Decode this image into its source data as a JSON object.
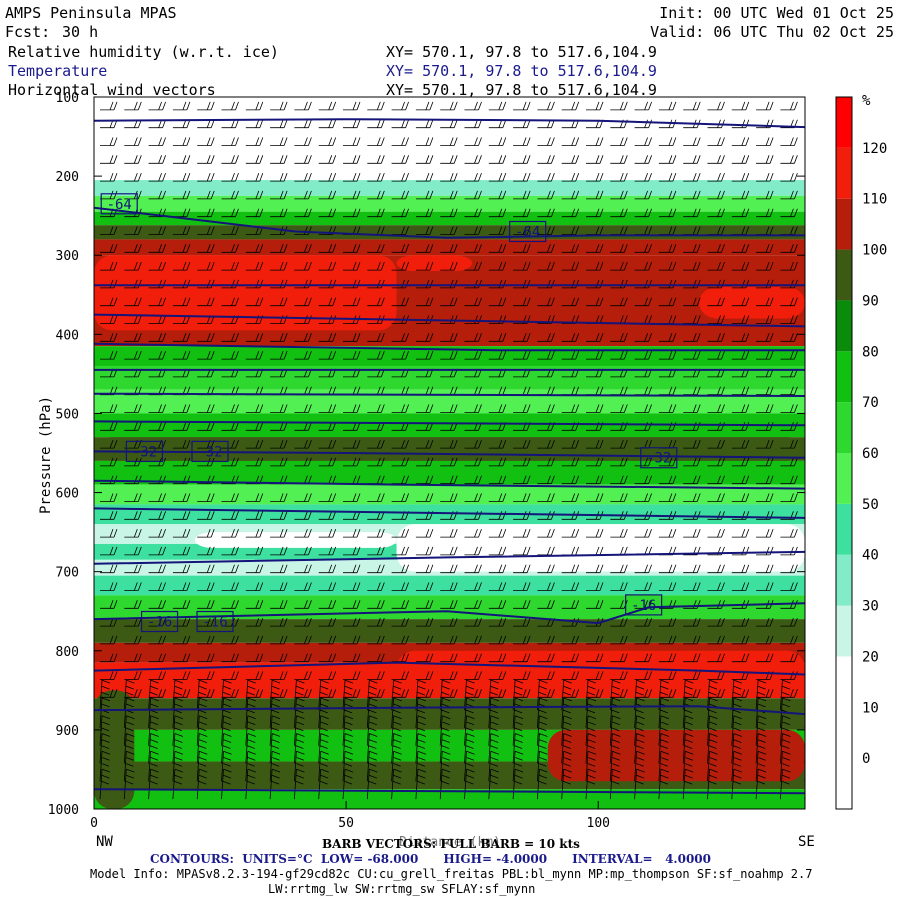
{
  "header": {
    "model_name": "AMPS Peninsula MPAS",
    "forecast_label": "Fcst:",
    "forecast_hours": "30 h",
    "init_label": "Init: 00 UTC Wed 01 Oct 25",
    "valid_label": "Valid: 06 UTC Thu 02 Oct 25",
    "fields": [
      {
        "name": "Relative humidity (w.r.t. ice)",
        "xy": "XY= 570.1, 97.8 to 517.6,104.9"
      },
      {
        "name": "Temperature",
        "xy": "XY= 570.1, 97.8 to 517.6,104.9",
        "color": "#1a1a8c"
      },
      {
        "name": "Horizontal wind vectors",
        "xy": "XY= 570.1, 97.8 to 517.6,104.9"
      }
    ]
  },
  "footer": {
    "barb_note": "BARB VECTORS: FULL BARB = 10 kts",
    "contours": "CONTOURS:  UNITS=°C  LOW= -68.000      HIGH= -4.0000      INTERVAL=   4.0000",
    "model_info": "Model Info: MPASv8.2.3-194-gf29cd82c CU:cu_grell_freitas PBL:bl_mynn MP:mp_thompson SF:sf_noahmp 2.7",
    "model_info2": "LW:rrtmg_lw SW:rrtmg_sw SFLAY:sf_mynn"
  },
  "chart_data": {
    "type": "heatmap",
    "ylabel": "Pressure (hPa)",
    "xlabel": "Distance (km)",
    "x_left_label": "NW",
    "x_right_label": "SE",
    "xlim": [
      0,
      141
    ],
    "ylim": [
      1000,
      100
    ],
    "x_ticks": [
      0,
      50,
      100
    ],
    "y_ticks": [
      100,
      200,
      300,
      400,
      500,
      600,
      700,
      800,
      900,
      1000
    ],
    "colorbar": {
      "unit": "%",
      "levels": [
        0,
        10,
        20,
        30,
        40,
        50,
        60,
        70,
        80,
        90,
        100,
        110,
        120
      ],
      "colors": [
        "#ffffff",
        "#ffffff",
        "#ffffff",
        "#c8f5e6",
        "#82ecc8",
        "#3ee0a0",
        "#52f052",
        "#2ed82e",
        "#12c012",
        "#0a8c0a",
        "#3c5a14",
        "#b41e0a",
        "#f01e0a",
        "#ff0000"
      ]
    },
    "rh_bands": [
      {
        "p_top": 100,
        "p_bot": 205,
        "rh": 0
      },
      {
        "p_top": 205,
        "p_bot": 225,
        "rh": 30
      },
      {
        "p_top": 225,
        "p_bot": 245,
        "rh": 50
      },
      {
        "p_top": 245,
        "p_bot": 262,
        "rh": 75
      },
      {
        "p_top": 262,
        "p_bot": 280,
        "rh": 95
      },
      {
        "p_top": 280,
        "p_bot": 300,
        "rh": 105
      },
      {
        "p_top": 300,
        "p_bot": 415,
        "rh": 105
      },
      {
        "p_top": 415,
        "p_bot": 440,
        "rh": 75
      },
      {
        "p_top": 440,
        "p_bot": 470,
        "rh": 65
      },
      {
        "p_top": 470,
        "p_bot": 500,
        "rh": 55
      },
      {
        "p_top": 500,
        "p_bot": 530,
        "rh": 75
      },
      {
        "p_top": 530,
        "p_bot": 560,
        "rh": 95
      },
      {
        "p_top": 560,
        "p_bot": 590,
        "rh": 75
      },
      {
        "p_top": 590,
        "p_bot": 615,
        "rh": 55
      },
      {
        "p_top": 615,
        "p_bot": 640,
        "rh": 40
      },
      {
        "p_top": 640,
        "p_bot": 665,
        "rh": 20
      },
      {
        "p_top": 665,
        "p_bot": 685,
        "rh": 40
      },
      {
        "p_top": 685,
        "p_bot": 705,
        "rh": 20
      },
      {
        "p_top": 705,
        "p_bot": 730,
        "rh": 45
      },
      {
        "p_top": 730,
        "p_bot": 760,
        "rh": 65
      },
      {
        "p_top": 760,
        "p_bot": 790,
        "rh": 95
      },
      {
        "p_top": 790,
        "p_bot": 815,
        "rh": 100
      },
      {
        "p_top": 815,
        "p_bot": 860,
        "rh": 115
      },
      {
        "p_top": 860,
        "p_bot": 900,
        "rh": 95
      },
      {
        "p_top": 900,
        "p_bot": 940,
        "rh": 75
      },
      {
        "p_top": 940,
        "p_bot": 975,
        "rh": 95
      },
      {
        "p_top": 975,
        "p_bot": 1000,
        "rh": 75
      }
    ],
    "rh_patches": [
      {
        "x0": 0,
        "x1": 60,
        "p_top": 300,
        "p_bot": 395,
        "rh": 115
      },
      {
        "x0": 60,
        "x1": 75,
        "p_top": 300,
        "p_bot": 320,
        "rh": 115
      },
      {
        "x0": 120,
        "x1": 141,
        "p_top": 340,
        "p_bot": 380,
        "rh": 115
      },
      {
        "x0": 0,
        "x1": 141,
        "p_top": 530,
        "p_bot": 560,
        "rh": 95
      },
      {
        "x0": 60,
        "x1": 141,
        "p_top": 640,
        "p_bot": 700,
        "rh": 0
      },
      {
        "x0": 20,
        "x1": 60,
        "p_top": 650,
        "p_bot": 670,
        "rh": 0
      },
      {
        "x0": 60,
        "x1": 141,
        "p_top": 800,
        "p_bot": 850,
        "rh": 115
      },
      {
        "x0": 0,
        "x1": 25,
        "p_top": 820,
        "p_bot": 855,
        "rh": 115
      },
      {
        "x0": 90,
        "x1": 141,
        "p_top": 900,
        "p_bot": 965,
        "rh": 100
      },
      {
        "x0": 0,
        "x1": 8,
        "p_top": 850,
        "p_bot": 1000,
        "rh": 95
      }
    ],
    "temperature_contours": [
      {
        "values": [
          [
            0,
            130
          ],
          [
            50,
            128
          ],
          [
            100,
            130
          ],
          [
            141,
            138
          ]
        ]
      },
      {
        "values": [
          [
            0,
            240
          ],
          [
            20,
            255
          ],
          [
            40,
            270
          ],
          [
            70,
            278
          ],
          [
            100,
            275
          ],
          [
            141,
            275
          ]
        ]
      },
      {
        "values": [
          [
            0,
            338
          ],
          [
            141,
            338
          ]
        ]
      },
      {
        "values": [
          [
            0,
            375
          ],
          [
            141,
            390
          ]
        ]
      },
      {
        "values": [
          [
            0,
            412
          ],
          [
            80,
            420
          ],
          [
            141,
            420
          ]
        ]
      },
      {
        "values": [
          [
            0,
            445
          ],
          [
            141,
            445
          ]
        ]
      },
      {
        "values": [
          [
            0,
            475
          ],
          [
            141,
            478
          ]
        ]
      },
      {
        "values": [
          [
            0,
            510
          ],
          [
            141,
            515
          ]
        ]
      },
      {
        "values": [
          [
            0,
            548
          ],
          [
            50,
            550
          ],
          [
            141,
            556
          ]
        ]
      },
      {
        "values": [
          [
            0,
            585
          ],
          [
            60,
            590
          ],
          [
            141,
            595
          ]
        ]
      },
      {
        "values": [
          [
            0,
            620
          ],
          [
            141,
            632
          ]
        ]
      },
      {
        "values": [
          [
            0,
            690
          ],
          [
            70,
            682
          ],
          [
            141,
            675
          ]
        ]
      },
      {
        "values": [
          [
            0,
            760
          ],
          [
            70,
            750
          ],
          [
            100,
            765
          ],
          [
            110,
            745
          ],
          [
            141,
            740
          ]
        ]
      },
      {
        "values": [
          [
            0,
            825
          ],
          [
            60,
            815
          ],
          [
            120,
            825
          ],
          [
            141,
            830
          ]
        ]
      },
      {
        "values": [
          [
            0,
            875
          ],
          [
            60,
            872
          ],
          [
            120,
            870
          ],
          [
            141,
            880
          ]
        ]
      },
      {
        "values": [
          [
            0,
            975
          ],
          [
            141,
            980
          ]
        ]
      }
    ],
    "contour_labels": [
      {
        "text": "-64",
        "x": 5,
        "p": 235
      },
      {
        "text": "-64",
        "x": 86,
        "p": 270
      },
      {
        "text": "-32",
        "x": 10,
        "p": 548
      },
      {
        "text": "-32",
        "x": 23,
        "p": 548
      },
      {
        "text": "-32",
        "x": 112,
        "p": 556
      },
      {
        "text": "-16",
        "x": 13,
        "p": 763
      },
      {
        "text": "-16",
        "x": 24,
        "p": 763
      },
      {
        "text": "-16",
        "x": 109,
        "p": 742
      }
    ]
  }
}
